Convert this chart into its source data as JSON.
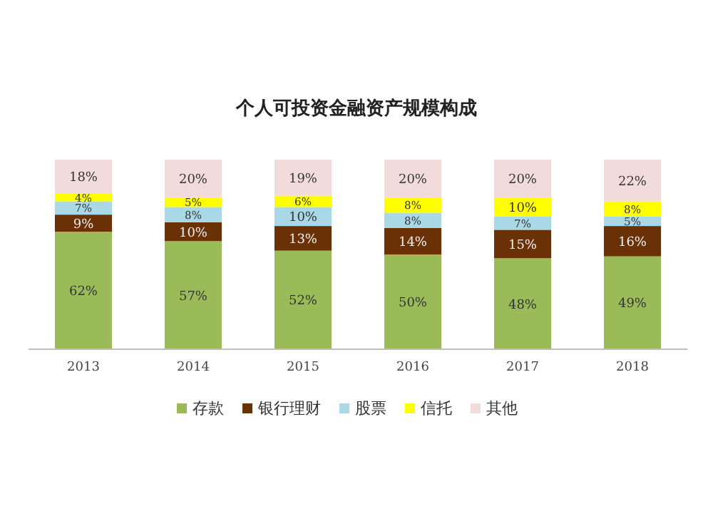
{
  "chart_data": {
    "type": "bar",
    "title": "个人可投资金融资产规模构成",
    "stacked": true,
    "categories": [
      "2013",
      "2014",
      "2015",
      "2016",
      "2017",
      "2018"
    ],
    "ylim": [
      0,
      100
    ],
    "tick_labels": "x",
    "legend": "bottom",
    "series": [
      {
        "name": "存款",
        "color": "#9bbb59",
        "values": [
          62,
          57,
          52,
          50,
          48,
          49
        ],
        "value_labels": [
          "62%",
          "57%",
          "52%",
          "50%",
          "48%",
          "49%"
        ]
      },
      {
        "name": "银行理财",
        "color": "#6b3106",
        "values": [
          9,
          10,
          13,
          14,
          15,
          16
        ],
        "value_labels": [
          "9%",
          "10%",
          "13%",
          "14%",
          "15%",
          "16%"
        ]
      },
      {
        "name": "股票",
        "color": "#a9d8e6",
        "values": [
          7,
          8,
          10,
          8,
          7,
          5
        ],
        "value_labels": [
          "7%",
          "8%",
          "10%",
          "8%",
          "7%",
          "5%"
        ]
      },
      {
        "name": "信托",
        "color": "#ffff00",
        "values": [
          4,
          5,
          6,
          8,
          10,
          8
        ],
        "value_labels": [
          "4%",
          "5%",
          "6%",
          "8%",
          "10%",
          "8%"
        ]
      },
      {
        "name": "其他",
        "color": "#f2dcdb",
        "values": [
          18,
          20,
          19,
          20,
          20,
          22
        ],
        "value_labels": [
          "18%",
          "20%",
          "19%",
          "20%",
          "20%",
          "22%"
        ]
      }
    ]
  }
}
